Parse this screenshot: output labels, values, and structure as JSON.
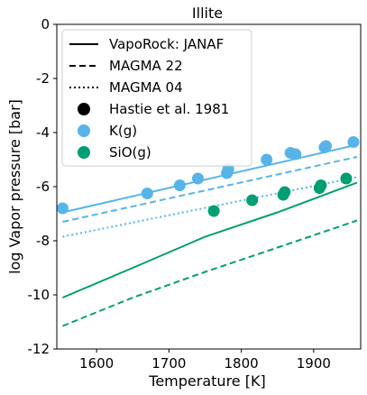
{
  "chart_data": {
    "type": "line",
    "title": "Illite",
    "xlabel": "Temperature [K]",
    "ylabel": "log Vapor pressure [bar]",
    "xlim": [
      1545,
      1965
    ],
    "ylim": [
      -12,
      0
    ],
    "xticks": [
      1600,
      1700,
      1800,
      1900
    ],
    "yticks": [
      0,
      -2,
      -4,
      -6,
      -8,
      -10,
      -12
    ],
    "xtick_labels": [
      "1600",
      "1700",
      "1800",
      "1900"
    ],
    "ytick_labels": [
      "0",
      "-2",
      "-4",
      "-6",
      "-8",
      "-10",
      "-12"
    ],
    "grid": false,
    "legend": {
      "placement": "top-left",
      "entries": [
        {
          "label": "VapoRock: JANAF",
          "kind": "line",
          "dash": "solid"
        },
        {
          "label": "MAGMA 22",
          "kind": "line",
          "dash": "dashed"
        },
        {
          "label": "MAGMA 04",
          "kind": "line",
          "dash": "dotted"
        },
        {
          "label": "Hastie et al. 1981",
          "kind": "marker",
          "color": "#000000"
        },
        {
          "label": "K(g)",
          "kind": "marker",
          "color": "#56B4E9"
        },
        {
          "label": "SiO(g)",
          "kind": "marker",
          "color": "#009E73"
        }
      ]
    },
    "colors": {
      "K": "#56B4E9",
      "SiO": "#009E73"
    },
    "series": [
      {
        "group": "K",
        "style": "solid",
        "x": [
          1553,
          1960
        ],
        "y": [
          -6.95,
          -4.45
        ]
      },
      {
        "group": "K",
        "style": "dashed",
        "x": [
          1553,
          1960
        ],
        "y": [
          -7.3,
          -4.9
        ]
      },
      {
        "group": "K",
        "style": "dotted",
        "x": [
          1553,
          1960
        ],
        "y": [
          -7.85,
          -5.65
        ]
      },
      {
        "group": "SiO",
        "style": "solid",
        "x": [
          1553,
          1650,
          1750,
          1850,
          1960
        ],
        "y": [
          -10.1,
          -9.0,
          -7.85,
          -6.95,
          -5.85
        ]
      },
      {
        "group": "SiO",
        "style": "dashed",
        "x": [
          1553,
          1650,
          1750,
          1850,
          1960
        ],
        "y": [
          -11.15,
          -10.1,
          -9.15,
          -8.25,
          -7.25
        ]
      }
    ],
    "scatter": [
      {
        "group": "K",
        "x": [
          1553,
          1670,
          1715,
          1740,
          1780,
          1782,
          1835,
          1868,
          1875,
          1915,
          1917,
          1955
        ],
        "y": [
          -6.8,
          -6.25,
          -5.95,
          -5.7,
          -5.5,
          -5.35,
          -5.0,
          -4.75,
          -4.8,
          -4.55,
          -4.5,
          -4.35
        ]
      },
      {
        "group": "SiO",
        "x": [
          1762,
          1815,
          1858,
          1860,
          1908,
          1910,
          1945
        ],
        "y": [
          -6.9,
          -6.5,
          -6.3,
          -6.2,
          -6.05,
          -5.95,
          -5.7
        ]
      }
    ]
  }
}
